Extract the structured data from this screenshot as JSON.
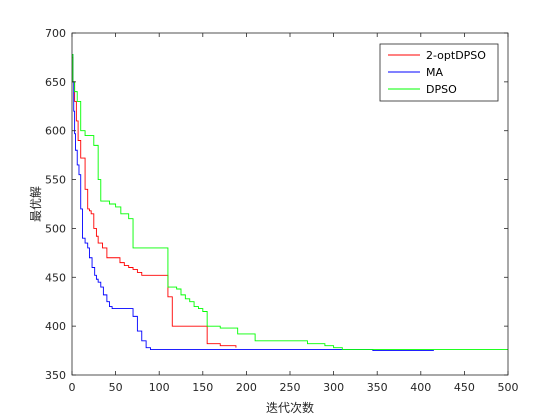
{
  "chart_data": {
    "type": "line",
    "title": "",
    "xlabel": "迭代次数",
    "ylabel": "最优解",
    "xlim": [
      0,
      500
    ],
    "ylim": [
      350,
      700
    ],
    "xticks": [
      0,
      50,
      100,
      150,
      200,
      250,
      300,
      350,
      400,
      450,
      500
    ],
    "yticks": [
      350,
      400,
      450,
      500,
      550,
      600,
      650,
      700
    ],
    "grid": false,
    "legend_position": "top-right",
    "series": [
      {
        "name": "2-optDPSO",
        "color": "#ff0000",
        "step": true,
        "x": [
          0,
          1,
          3,
          5,
          7,
          10,
          12,
          15,
          18,
          20,
          22,
          25,
          28,
          30,
          35,
          40,
          45,
          50,
          55,
          60,
          65,
          70,
          75,
          80,
          85,
          90,
          100,
          110,
          115,
          120,
          130,
          140,
          150,
          155,
          160,
          170,
          180,
          188
        ],
        "y": [
          675,
          650,
          630,
          610,
          590,
          572,
          572,
          540,
          520,
          518,
          515,
          500,
          492,
          485,
          480,
          470,
          470,
          470,
          465,
          462,
          460,
          458,
          455,
          452,
          452,
          452,
          452,
          430,
          400,
          400,
          400,
          400,
          400,
          382,
          382,
          380,
          380,
          378
        ]
      },
      {
        "name": "MA",
        "color": "#0000ff",
        "step": true,
        "x": [
          0,
          1,
          2,
          3,
          4,
          6,
          8,
          10,
          12,
          15,
          18,
          20,
          23,
          26,
          28,
          30,
          33,
          36,
          40,
          43,
          46,
          50,
          55,
          60,
          65,
          70,
          75,
          80,
          85,
          90,
          100,
          120,
          150,
          200,
          250,
          300,
          345,
          380,
          415
        ],
        "y": [
          678,
          650,
          620,
          597,
          580,
          565,
          555,
          520,
          490,
          485,
          480,
          470,
          460,
          452,
          448,
          445,
          440,
          432,
          425,
          420,
          418,
          418,
          418,
          418,
          418,
          410,
          395,
          385,
          378,
          376,
          376,
          376,
          376,
          376,
          376,
          376,
          375,
          375,
          375
        ]
      },
      {
        "name": "DPSO",
        "color": "#00ff00",
        "step": true,
        "x": [
          0,
          1,
          3,
          6,
          10,
          15,
          20,
          25,
          30,
          33,
          35,
          38,
          40,
          43,
          46,
          50,
          53,
          56,
          60,
          65,
          70,
          75,
          80,
          85,
          90,
          95,
          100,
          105,
          110,
          115,
          120,
          125,
          130,
          135,
          140,
          145,
          150,
          155,
          160,
          170,
          180,
          190,
          200,
          210,
          230,
          250,
          270,
          290,
          300,
          310,
          400,
          500
        ],
        "y": [
          678,
          650,
          640,
          630,
          600,
          595,
          595,
          585,
          550,
          528,
          528,
          528,
          528,
          525,
          525,
          522,
          522,
          515,
          515,
          510,
          480,
          480,
          480,
          480,
          480,
          480,
          480,
          480,
          440,
          440,
          438,
          432,
          428,
          425,
          420,
          418,
          415,
          400,
          400,
          398,
          398,
          392,
          392,
          385,
          385,
          385,
          382,
          380,
          378,
          376,
          376,
          376
        ]
      }
    ]
  }
}
